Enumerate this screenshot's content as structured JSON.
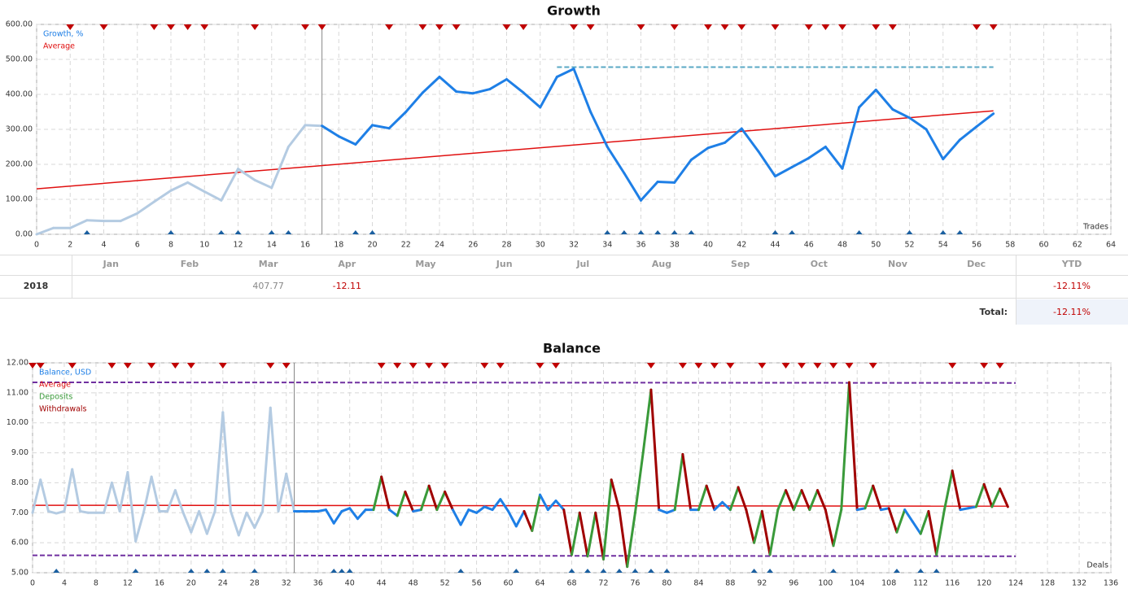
{
  "chart_data": [
    {
      "type": "line",
      "title": "Growth",
      "corner_label": "Trades",
      "xlim": [
        0,
        64
      ],
      "xticks": [
        0,
        2,
        4,
        6,
        8,
        10,
        12,
        14,
        16,
        18,
        20,
        22,
        24,
        26,
        28,
        30,
        32,
        34,
        36,
        38,
        40,
        42,
        44,
        46,
        48,
        50,
        52,
        54,
        56,
        58,
        60,
        62,
        64
      ],
      "ylim": [
        0,
        600
      ],
      "yticks": [
        {
          "value": 0,
          "label": "0.00"
        },
        {
          "value": 100,
          "label": "100.00"
        },
        {
          "value": 200,
          "label": "200.00"
        },
        {
          "value": 300,
          "label": "300.00"
        },
        {
          "value": 400,
          "label": "400.00"
        },
        {
          "value": 500,
          "label": "500.00"
        },
        {
          "value": 600,
          "label": "600.00"
        }
      ],
      "grid": true,
      "cursor_x": 17,
      "series": [
        {
          "name": "Growth, %",
          "color": "#1e7fe6",
          "faded_color": "#b4cbe2",
          "x": [
            0,
            1,
            2,
            3,
            4,
            5,
            6,
            7,
            8,
            9,
            10,
            11,
            12,
            13,
            14,
            15,
            16,
            17,
            18,
            19,
            20,
            21,
            22,
            23,
            24,
            25,
            26,
            27,
            28,
            29,
            30,
            31,
            32,
            33,
            34,
            35,
            36,
            37,
            38,
            39,
            40,
            41,
            42,
            43,
            44,
            45,
            46,
            47,
            48,
            49,
            50,
            51,
            52,
            53,
            54,
            55,
            56,
            57
          ],
          "values": [
            0,
            18,
            18,
            40,
            38,
            38,
            60,
            93,
            125,
            148,
            122,
            97,
            187,
            155,
            133,
            250,
            312,
            310,
            280,
            257,
            312,
            303,
            350,
            405,
            450,
            408,
            403,
            415,
            443,
            405,
            363,
            450,
            473,
            350,
            250,
            175,
            97,
            150,
            148,
            213,
            247,
            262,
            302,
            237,
            166,
            192,
            218,
            250,
            188,
            363,
            413,
            357,
            333,
            300,
            215,
            270,
            308,
            345
          ]
        }
      ],
      "average": {
        "name": "Average",
        "color": "#e01010",
        "x": [
          0,
          57
        ],
        "values": [
          130,
          353
        ]
      },
      "bands": [
        {
          "color": "#5aa8c4",
          "x": [
            31,
            57
          ],
          "values": [
            478,
            478
          ]
        }
      ],
      "top_markers": {
        "color": "#c00000",
        "x": [
          2,
          4,
          7,
          8,
          9,
          10,
          13,
          16,
          17,
          21,
          23,
          24,
          25,
          28,
          29,
          32,
          33,
          36,
          38,
          40,
          41,
          42,
          44,
          46,
          47,
          48,
          50,
          51,
          56,
          57
        ]
      },
      "bottom_markers": {
        "color": "#1a5fa0",
        "x": [
          3,
          8,
          11,
          12,
          14,
          15,
          19,
          20,
          34,
          35,
          36,
          37,
          38,
          39,
          44,
          45,
          49,
          52,
          54,
          55
        ]
      }
    },
    {
      "type": "line",
      "title": "Balance",
      "corner_label": "Deals",
      "xlim": [
        0,
        136
      ],
      "xticks": [
        0,
        4,
        8,
        12,
        16,
        20,
        24,
        28,
        32,
        36,
        40,
        44,
        48,
        52,
        56,
        60,
        64,
        68,
        72,
        76,
        80,
        84,
        88,
        92,
        96,
        100,
        104,
        108,
        112,
        116,
        120,
        124,
        128,
        132,
        136
      ],
      "ylim": [
        5,
        12
      ],
      "yticks": [
        {
          "value": 5,
          "label": "5.00"
        },
        {
          "value": 6,
          "label": "6.00"
        },
        {
          "value": 7,
          "label": "7.00"
        },
        {
          "value": 8,
          "label": "8.00"
        },
        {
          "value": 9,
          "label": "9.00"
        },
        {
          "value": 10,
          "label": "10.00"
        },
        {
          "value": 11,
          "label": "11.00"
        },
        {
          "value": 12,
          "label": "12.00"
        }
      ],
      "grid": true,
      "cursor_x": 33,
      "series": [
        {
          "name": "Balance, USD",
          "color": "#1e7fe6",
          "faded_color": "#b4cbe2",
          "x": [
            0,
            1,
            2,
            3,
            4,
            5,
            6,
            7,
            8,
            9,
            10,
            11,
            12,
            13,
            14,
            15,
            16,
            17,
            18,
            19,
            20,
            21,
            22,
            23,
            24,
            25,
            26,
            27,
            28,
            29,
            30,
            31,
            32,
            33,
            34,
            35,
            36,
            37,
            38,
            39,
            40,
            41,
            42,
            43,
            44,
            45,
            46,
            47,
            48,
            49,
            50,
            51,
            52,
            53,
            54,
            55,
            56,
            57,
            58,
            59,
            60,
            61,
            62,
            63,
            64,
            65,
            66,
            67,
            68,
            69,
            70,
            71,
            72,
            73,
            74,
            75,
            76,
            77,
            78,
            79,
            80,
            81,
            82,
            83,
            84,
            85,
            86,
            87,
            88,
            89,
            90,
            91,
            92,
            93,
            94,
            95,
            96,
            97,
            98,
            99,
            100,
            101,
            102,
            103,
            104,
            105,
            106,
            107,
            108,
            109,
            110,
            111,
            112,
            113,
            114,
            115,
            116,
            117,
            118,
            119,
            120,
            121,
            122,
            123
          ],
          "values": [
            7.0,
            8.1,
            7.05,
            6.98,
            7.05,
            8.45,
            7.05,
            7.0,
            7.0,
            7.0,
            8.0,
            7.05,
            8.35,
            6.05,
            7.0,
            8.2,
            7.05,
            7.05,
            7.75,
            7.0,
            6.35,
            7.05,
            6.3,
            7.05,
            10.35,
            7.05,
            6.25,
            7.0,
            6.5,
            7.05,
            10.5,
            7.05,
            8.3,
            7.05,
            7.05,
            7.05,
            7.05,
            7.1,
            6.65,
            7.05,
            7.15,
            6.8,
            7.1,
            7.1,
            8.2,
            7.1,
            6.9,
            7.7,
            7.05,
            7.1,
            7.9,
            7.1,
            7.7,
            7.1,
            6.6,
            7.1,
            7.0,
            7.2,
            7.1,
            7.45,
            7.05,
            6.55,
            7.05,
            6.4,
            7.6,
            7.1,
            7.4,
            7.1,
            5.6,
            7.0,
            5.55,
            7.0,
            5.45,
            8.1,
            7.1,
            5.2,
            7.0,
            9.0,
            11.1,
            7.1,
            7.0,
            7.1,
            8.95,
            7.1,
            7.1,
            7.9,
            7.1,
            7.35,
            7.1,
            7.85,
            7.1,
            6.0,
            7.05,
            5.6,
            7.1,
            7.75,
            7.1,
            7.75,
            7.1,
            7.75,
            7.1,
            5.9,
            7.1,
            11.35,
            7.1,
            7.15,
            7.9,
            7.1,
            7.15,
            6.35,
            7.1,
            6.7,
            6.3,
            7.05,
            5.6,
            7.1,
            8.4,
            7.1,
            7.15,
            7.2,
            7.95,
            7.2,
            7.8,
            7.2
          ]
        }
      ],
      "average": {
        "name": "Average",
        "color": "#e01010",
        "x": [
          0,
          123
        ],
        "values": [
          7.25,
          7.22
        ]
      },
      "deposits": {
        "name": "Deposits",
        "color": "#3a9a3a"
      },
      "withdrawals": {
        "name": "Withdrawals",
        "color": "#a00000"
      },
      "bands": [
        {
          "color": "#7030a0",
          "x": [
            0,
            124
          ],
          "values": [
            11.35,
            11.33
          ]
        },
        {
          "color": "#7030a0",
          "x": [
            0,
            124
          ],
          "values": [
            5.58,
            5.55
          ]
        }
      ],
      "top_markers": {
        "color": "#c00000",
        "x": [
          0,
          1,
          5,
          10,
          12,
          15,
          18,
          20,
          24,
          30,
          32,
          44,
          46,
          48,
          50,
          52,
          57,
          59,
          64,
          66,
          78,
          82,
          84,
          86,
          88,
          92,
          95,
          97,
          99,
          101,
          103,
          106,
          116,
          120,
          122
        ]
      },
      "bottom_markers": {
        "color": "#1a5fa0",
        "x": [
          3,
          13,
          20,
          22,
          24,
          28,
          38,
          39,
          40,
          54,
          61,
          68,
          70,
          72,
          74,
          76,
          78,
          80,
          91,
          93,
          101,
          109,
          112,
          114
        ]
      }
    }
  ],
  "table": {
    "columns": [
      "Jan",
      "Feb",
      "Mar",
      "Apr",
      "May",
      "Jun",
      "Jul",
      "Aug",
      "Sep",
      "Oct",
      "Nov",
      "Dec"
    ],
    "ytd_header": "YTD",
    "rows": [
      {
        "year": "2018",
        "cells": [
          {
            "month": 2,
            "text": "407.77",
            "color": "#888888"
          },
          {
            "month": 3,
            "text": "-12.11",
            "color": "#c00000"
          }
        ],
        "ytd": "-12.11%"
      }
    ],
    "total_label": "Total:",
    "total": "-12.11%"
  }
}
